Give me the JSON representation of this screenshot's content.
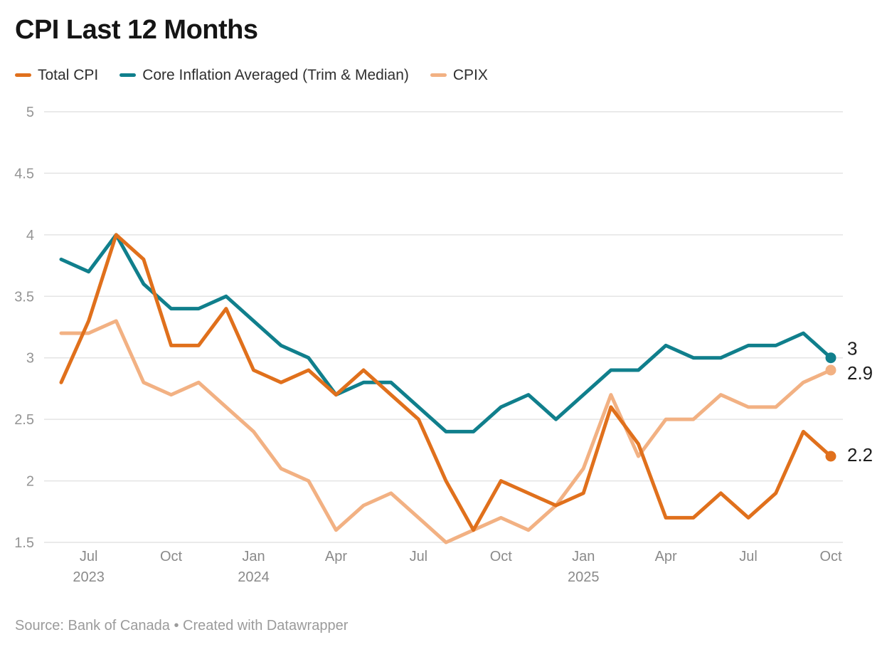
{
  "title": "CPI Last 12 Months",
  "legend": [
    {
      "label": "Total CPI",
      "color": "#e0701c"
    },
    {
      "label": "Core Inflation Averaged (Trim & Median)",
      "color": "#107f8c"
    },
    {
      "label": "CPIX",
      "color": "#f2b183"
    }
  ],
  "footer": "Source: Bank of Canada • Created with Datawrapper",
  "colors": {
    "total_cpi": "#e0701c",
    "core_inflation": "#107f8c",
    "cpix": "#f2b183",
    "gridline": "#e4e4e4",
    "y_axis_text": "#949494",
    "x_axis_text": "#8a8a8a",
    "end_label_text": "#1d1d1d"
  },
  "chart_data": {
    "type": "line",
    "title": "CPI Last 12 Months",
    "x": [
      "Jun 2023",
      "Jul 2023",
      "Aug 2023",
      "Sep 2023",
      "Oct 2023",
      "Nov 2023",
      "Dec 2023",
      "Jan 2024",
      "Feb 2024",
      "Mar 2024",
      "Apr 2024",
      "May 2024",
      "Jun 2024",
      "Jul 2024",
      "Aug 2024",
      "Sep 2024",
      "Oct 2024",
      "Nov 2024",
      "Dec 2024",
      "Jan 2025",
      "Feb 2025",
      "Mar 2025",
      "Apr 2025",
      "May 2025",
      "Jun 2025",
      "Jul 2025",
      "Aug 2025",
      "Sep 2025",
      "Oct 2025"
    ],
    "series": [
      {
        "id": "total-cpi",
        "name": "Total CPI",
        "color": "#e0701c",
        "values": [
          2.8,
          3.3,
          4.0,
          3.8,
          3.1,
          3.1,
          3.4,
          2.9,
          2.8,
          2.9,
          2.7,
          2.9,
          2.7,
          2.5,
          2.0,
          1.6,
          2.0,
          1.9,
          1.8,
          1.9,
          2.6,
          2.3,
          1.7,
          1.7,
          1.9,
          1.7,
          1.9,
          2.4,
          2.2
        ],
        "end_label": "2.2",
        "end_label_dy": 7
      },
      {
        "id": "core-inflation",
        "name": "Core Inflation Averaged (Trim & Median)",
        "color": "#107f8c",
        "values": [
          3.8,
          3.7,
          4.0,
          3.6,
          3.4,
          3.4,
          3.5,
          3.3,
          3.1,
          3.0,
          2.7,
          2.8,
          2.8,
          2.6,
          2.4,
          2.4,
          2.6,
          2.7,
          2.5,
          2.7,
          2.9,
          2.9,
          3.1,
          3.0,
          3.0,
          3.1,
          3.1,
          3.2,
          3.0
        ],
        "end_label": "3",
        "end_label_dy": -4
      },
      {
        "id": "cpix",
        "name": "CPIX",
        "color": "#f2b183",
        "values": [
          3.2,
          3.2,
          3.3,
          2.8,
          2.7,
          2.8,
          2.6,
          2.4,
          2.1,
          2.0,
          1.6,
          1.8,
          1.9,
          1.7,
          1.5,
          1.6,
          1.7,
          1.6,
          1.8,
          2.1,
          2.7,
          2.2,
          2.5,
          2.5,
          2.7,
          2.6,
          2.6,
          2.8,
          2.9
        ],
        "end_label": "2.9",
        "end_label_dy": 13
      }
    ],
    "x_ticks": [
      {
        "index": 1,
        "month": "Jul",
        "year": "2023"
      },
      {
        "index": 4,
        "month": "Oct"
      },
      {
        "index": 7,
        "month": "Jan",
        "year": "2024"
      },
      {
        "index": 10,
        "month": "Apr"
      },
      {
        "index": 13,
        "month": "Jul"
      },
      {
        "index": 16,
        "month": "Oct"
      },
      {
        "index": 19,
        "month": "Jan",
        "year": "2025"
      },
      {
        "index": 22,
        "month": "Apr"
      },
      {
        "index": 25,
        "month": "Jul"
      },
      {
        "index": 28,
        "month": "Oct"
      }
    ],
    "y_ticks": [
      "1.5",
      "2",
      "2.5",
      "3",
      "3.5",
      "4",
      "4.5",
      "5"
    ],
    "ylim": [
      1.5,
      5
    ],
    "grid": "horizontal",
    "legend_position": "top",
    "xlabel": "",
    "ylabel": ""
  }
}
